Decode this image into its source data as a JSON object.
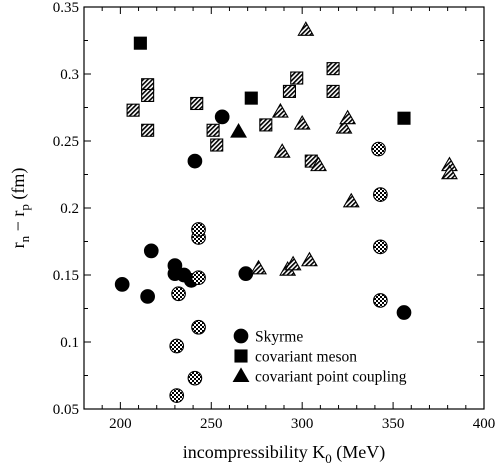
{
  "chart_data": {
    "type": "scatter",
    "xlabel": "incompressibility K",
    "xlabel_sub": "0",
    "xlabel_unit": " (MeV)",
    "ylabel_parts": [
      "r",
      "n",
      " − r",
      "p",
      " (fm)"
    ],
    "xlim": [
      180,
      400
    ],
    "ylim": [
      0.05,
      0.35
    ],
    "xticks": [
      200,
      250,
      300,
      350,
      400
    ],
    "xtick_labels": [
      "200",
      "250",
      "300",
      "350",
      "400"
    ],
    "yticks": [
      0.05,
      0.1,
      0.15,
      0.2,
      0.25,
      0.3,
      0.35
    ],
    "ytick_labels": [
      "0.05",
      "0.1",
      "0.15",
      "0.2",
      "0.25",
      "0.3",
      "0.35"
    ],
    "legend_position": "bottom-right",
    "fill_styles": [
      "solid",
      "hatched",
      "checkered"
    ],
    "series": [
      {
        "name": "Skyrme",
        "marker": "circle",
        "points": [
          {
            "x": 201,
            "y": 0.143,
            "fill": "solid"
          },
          {
            "x": 215,
            "y": 0.134,
            "fill": "solid"
          },
          {
            "x": 217,
            "y": 0.168,
            "fill": "solid"
          },
          {
            "x": 230,
            "y": 0.157,
            "fill": "solid"
          },
          {
            "x": 230,
            "y": 0.151,
            "fill": "solid"
          },
          {
            "x": 235,
            "y": 0.15,
            "fill": "solid"
          },
          {
            "x": 239,
            "y": 0.146,
            "fill": "solid"
          },
          {
            "x": 241,
            "y": 0.235,
            "fill": "solid"
          },
          {
            "x": 256,
            "y": 0.268,
            "fill": "solid"
          },
          {
            "x": 269,
            "y": 0.151,
            "fill": "solid"
          },
          {
            "x": 356,
            "y": 0.122,
            "fill": "solid"
          },
          {
            "x": 232,
            "y": 0.136,
            "fill": "checkered"
          },
          {
            "x": 231,
            "y": 0.097,
            "fill": "checkered"
          },
          {
            "x": 231,
            "y": 0.06,
            "fill": "checkered"
          },
          {
            "x": 241,
            "y": 0.073,
            "fill": "checkered"
          },
          {
            "x": 243,
            "y": 0.111,
            "fill": "checkered"
          },
          {
            "x": 243,
            "y": 0.148,
            "fill": "checkered"
          },
          {
            "x": 243,
            "y": 0.178,
            "fill": "checkered"
          },
          {
            "x": 243,
            "y": 0.184,
            "fill": "checkered"
          },
          {
            "x": 342,
            "y": 0.244,
            "fill": "checkered"
          },
          {
            "x": 343,
            "y": 0.21,
            "fill": "checkered"
          },
          {
            "x": 343,
            "y": 0.171,
            "fill": "checkered"
          },
          {
            "x": 343,
            "y": 0.131,
            "fill": "checkered"
          }
        ]
      },
      {
        "name": "covariant meson",
        "marker": "square",
        "points": [
          {
            "x": 211,
            "y": 0.323,
            "fill": "solid"
          },
          {
            "x": 272,
            "y": 0.282,
            "fill": "solid"
          },
          {
            "x": 356,
            "y": 0.267,
            "fill": "solid"
          },
          {
            "x": 207,
            "y": 0.273,
            "fill": "hatched"
          },
          {
            "x": 215,
            "y": 0.292,
            "fill": "hatched"
          },
          {
            "x": 215,
            "y": 0.284,
            "fill": "hatched"
          },
          {
            "x": 215,
            "y": 0.258,
            "fill": "hatched"
          },
          {
            "x": 242,
            "y": 0.278,
            "fill": "hatched"
          },
          {
            "x": 251,
            "y": 0.258,
            "fill": "hatched"
          },
          {
            "x": 253,
            "y": 0.247,
            "fill": "hatched"
          },
          {
            "x": 280,
            "y": 0.262,
            "fill": "hatched"
          },
          {
            "x": 293,
            "y": 0.287,
            "fill": "hatched"
          },
          {
            "x": 297,
            "y": 0.297,
            "fill": "hatched"
          },
          {
            "x": 305,
            "y": 0.235,
            "fill": "hatched"
          },
          {
            "x": 317,
            "y": 0.304,
            "fill": "hatched"
          },
          {
            "x": 317,
            "y": 0.287,
            "fill": "hatched"
          }
        ]
      },
      {
        "name": "covariant point coupling",
        "marker": "triangle",
        "points": [
          {
            "x": 265,
            "y": 0.257,
            "fill": "solid"
          },
          {
            "x": 276,
            "y": 0.155,
            "fill": "hatched"
          },
          {
            "x": 288,
            "y": 0.272,
            "fill": "hatched"
          },
          {
            "x": 289,
            "y": 0.242,
            "fill": "hatched"
          },
          {
            "x": 292,
            "y": 0.154,
            "fill": "hatched"
          },
          {
            "x": 295,
            "y": 0.158,
            "fill": "hatched"
          },
          {
            "x": 300,
            "y": 0.263,
            "fill": "hatched"
          },
          {
            "x": 302,
            "y": 0.333,
            "fill": "hatched"
          },
          {
            "x": 304,
            "y": 0.161,
            "fill": "hatched"
          },
          {
            "x": 309,
            "y": 0.232,
            "fill": "hatched"
          },
          {
            "x": 323,
            "y": 0.26,
            "fill": "hatched"
          },
          {
            "x": 325,
            "y": 0.267,
            "fill": "hatched"
          },
          {
            "x": 327,
            "y": 0.205,
            "fill": "hatched"
          },
          {
            "x": 381,
            "y": 0.232,
            "fill": "hatched"
          },
          {
            "x": 381,
            "y": 0.226,
            "fill": "hatched"
          }
        ]
      }
    ]
  }
}
